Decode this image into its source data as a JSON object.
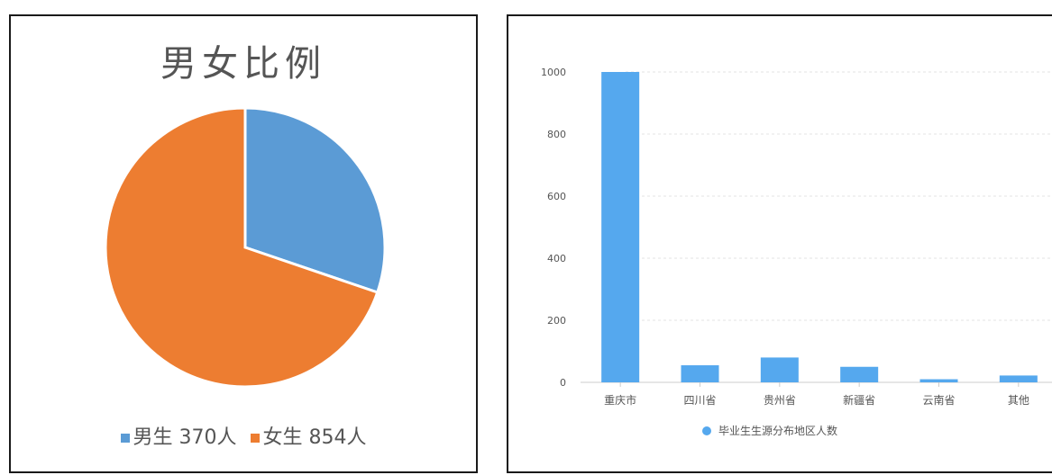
{
  "chart_data": [
    {
      "type": "pie",
      "title": "男女比例",
      "slices": [
        {
          "label": "男生",
          "value": 370,
          "legend": "男生 370人",
          "color": "#5b9bd5"
        },
        {
          "label": "女生",
          "value": 854,
          "legend": "女生 854人",
          "color": "#ed7d31"
        }
      ]
    },
    {
      "type": "bar",
      "categories": [
        "重庆市",
        "四川省",
        "贵州省",
        "新疆省",
        "云南省",
        "其他"
      ],
      "series": [
        {
          "name": "毕业生生源分布地区人数",
          "values": [
            1000,
            55,
            80,
            50,
            10,
            22
          ],
          "color": "#55a8ee"
        }
      ],
      "yticks": [
        "0",
        "200",
        "400",
        "600",
        "800",
        "1000"
      ],
      "ylim": [
        0,
        1000
      ],
      "grid": true,
      "legend_position": "bottom"
    }
  ]
}
